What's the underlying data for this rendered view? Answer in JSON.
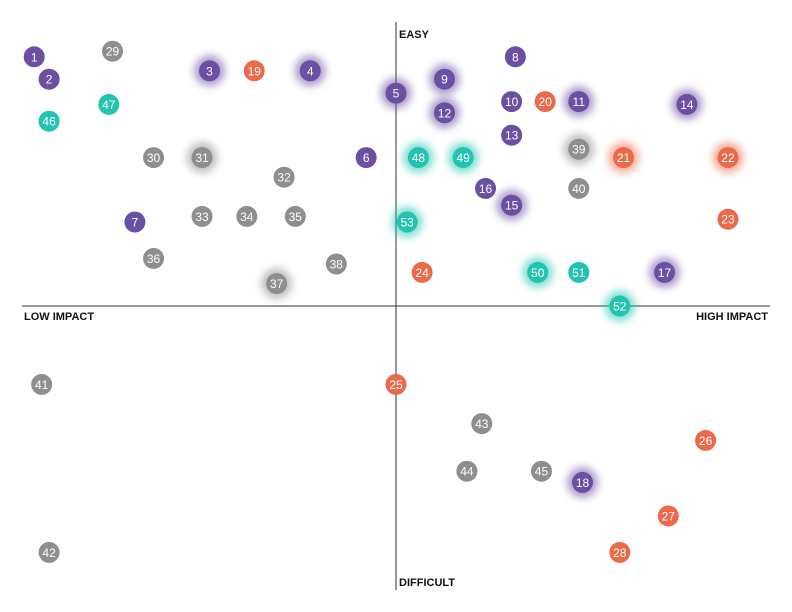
{
  "chart_data": {
    "type": "scatter",
    "title": "",
    "axis_labels": {
      "top": "EASY",
      "bottom": "DIFFICULT",
      "left": "LOW IMPACT",
      "right": "HIGH IMPACT"
    },
    "xlim": [
      -10,
      10
    ],
    "ylim": [
      -10,
      10
    ],
    "grid": false,
    "colors": {
      "purple": "#6a4fa3",
      "orange": "#ea6a49",
      "teal": "#22c4b0",
      "gray": "#8e8e8e"
    },
    "points": [
      {
        "label": "1",
        "x": -9.7,
        "y": 8.9,
        "color": "purple",
        "glow": false
      },
      {
        "label": "2",
        "x": -9.3,
        "y": 8.1,
        "color": "purple",
        "glow": false
      },
      {
        "label": "3",
        "x": -5.0,
        "y": 8.4,
        "color": "purple",
        "glow": true
      },
      {
        "label": "4",
        "x": -2.3,
        "y": 8.4,
        "color": "purple",
        "glow": true
      },
      {
        "label": "5",
        "x": 0.0,
        "y": 7.6,
        "color": "purple",
        "glow": true
      },
      {
        "label": "6",
        "x": -0.8,
        "y": 5.3,
        "color": "purple",
        "glow": false
      },
      {
        "label": "7",
        "x": -7.0,
        "y": 3.0,
        "color": "purple",
        "glow": false
      },
      {
        "label": "8",
        "x": 3.2,
        "y": 8.9,
        "color": "purple",
        "glow": false
      },
      {
        "label": "9",
        "x": 1.3,
        "y": 8.1,
        "color": "purple",
        "glow": true
      },
      {
        "label": "10",
        "x": 3.1,
        "y": 7.3,
        "color": "purple",
        "glow": false
      },
      {
        "label": "11",
        "x": 4.9,
        "y": 7.3,
        "color": "purple",
        "glow": true
      },
      {
        "label": "12",
        "x": 1.3,
        "y": 6.9,
        "color": "purple",
        "glow": true
      },
      {
        "label": "13",
        "x": 3.1,
        "y": 6.1,
        "color": "purple",
        "glow": false
      },
      {
        "label": "14",
        "x": 7.8,
        "y": 7.2,
        "color": "purple",
        "glow": true
      },
      {
        "label": "15",
        "x": 3.1,
        "y": 3.6,
        "color": "purple",
        "glow": true
      },
      {
        "label": "16",
        "x": 2.4,
        "y": 4.2,
        "color": "purple",
        "glow": false
      },
      {
        "label": "17",
        "x": 7.2,
        "y": 1.2,
        "color": "purple",
        "glow": true
      },
      {
        "label": "18",
        "x": 5.0,
        "y": -6.3,
        "color": "purple",
        "glow": true
      },
      {
        "label": "19",
        "x": -3.8,
        "y": 8.4,
        "color": "orange",
        "glow": false
      },
      {
        "label": "20",
        "x": 4.0,
        "y": 7.3,
        "color": "orange",
        "glow": false
      },
      {
        "label": "21",
        "x": 6.1,
        "y": 5.3,
        "color": "orange",
        "glow": true
      },
      {
        "label": "22",
        "x": 8.9,
        "y": 5.3,
        "color": "orange",
        "glow": true
      },
      {
        "label": "23",
        "x": 8.9,
        "y": 3.1,
        "color": "orange",
        "glow": false
      },
      {
        "label": "24",
        "x": 0.7,
        "y": 1.2,
        "color": "orange",
        "glow": false
      },
      {
        "label": "25",
        "x": 0.0,
        "y": -2.8,
        "color": "orange",
        "glow": false
      },
      {
        "label": "26",
        "x": 8.3,
        "y": -4.8,
        "color": "orange",
        "glow": false
      },
      {
        "label": "27",
        "x": 7.3,
        "y": -7.5,
        "color": "orange",
        "glow": false
      },
      {
        "label": "28",
        "x": 6.0,
        "y": -8.8,
        "color": "orange",
        "glow": false
      },
      {
        "label": "29",
        "x": -7.6,
        "y": 9.1,
        "color": "gray",
        "glow": false
      },
      {
        "label": "30",
        "x": -6.5,
        "y": 5.3,
        "color": "gray",
        "glow": false
      },
      {
        "label": "31",
        "x": -5.2,
        "y": 5.3,
        "color": "gray",
        "glow": true
      },
      {
        "label": "32",
        "x": -3.0,
        "y": 4.6,
        "color": "gray",
        "glow": false
      },
      {
        "label": "33",
        "x": -5.2,
        "y": 3.2,
        "color": "gray",
        "glow": false
      },
      {
        "label": "34",
        "x": -4.0,
        "y": 3.2,
        "color": "gray",
        "glow": false
      },
      {
        "label": "35",
        "x": -2.7,
        "y": 3.2,
        "color": "gray",
        "glow": false
      },
      {
        "label": "36",
        "x": -6.5,
        "y": 1.7,
        "color": "gray",
        "glow": false
      },
      {
        "label": "37",
        "x": -3.2,
        "y": 0.8,
        "color": "gray",
        "glow": true
      },
      {
        "label": "38",
        "x": -1.6,
        "y": 1.5,
        "color": "gray",
        "glow": false
      },
      {
        "label": "39",
        "x": 4.9,
        "y": 5.6,
        "color": "gray",
        "glow": true
      },
      {
        "label": "40",
        "x": 4.9,
        "y": 4.2,
        "color": "gray",
        "glow": false
      },
      {
        "label": "41",
        "x": -9.5,
        "y": -2.8,
        "color": "gray",
        "glow": false
      },
      {
        "label": "42",
        "x": -9.3,
        "y": -8.8,
        "color": "gray",
        "glow": false
      },
      {
        "label": "43",
        "x": 2.3,
        "y": -4.2,
        "color": "gray",
        "glow": false
      },
      {
        "label": "44",
        "x": 1.9,
        "y": -5.9,
        "color": "gray",
        "glow": false
      },
      {
        "label": "45",
        "x": 3.9,
        "y": -5.9,
        "color": "gray",
        "glow": false
      },
      {
        "label": "46",
        "x": -9.3,
        "y": 6.6,
        "color": "teal",
        "glow": false
      },
      {
        "label": "47",
        "x": -7.7,
        "y": 7.2,
        "color": "teal",
        "glow": false
      },
      {
        "label": "48",
        "x": 0.6,
        "y": 5.3,
        "color": "teal",
        "glow": true
      },
      {
        "label": "49",
        "x": 1.8,
        "y": 5.3,
        "color": "teal",
        "glow": true
      },
      {
        "label": "50",
        "x": 3.8,
        "y": 1.2,
        "color": "teal",
        "glow": true
      },
      {
        "label": "51",
        "x": 4.9,
        "y": 1.2,
        "color": "teal",
        "glow": false
      },
      {
        "label": "52",
        "x": 6.0,
        "y": 0.0,
        "color": "teal",
        "glow": true
      },
      {
        "label": "53",
        "x": 0.3,
        "y": 3.0,
        "color": "teal",
        "glow": true
      }
    ]
  }
}
